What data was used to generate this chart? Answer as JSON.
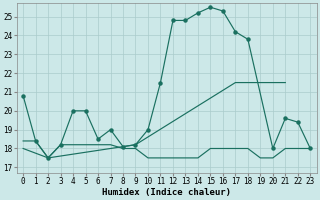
{
  "xlabel": "Humidex (Indice chaleur)",
  "bg_color": "#cce8e8",
  "grid_color": "#aacccc",
  "line_color": "#1a7060",
  "xlim": [
    -0.5,
    23.5
  ],
  "ylim": [
    16.7,
    25.7
  ],
  "yticks": [
    17,
    18,
    19,
    20,
    21,
    22,
    23,
    24,
    25
  ],
  "xticks": [
    0,
    1,
    2,
    3,
    4,
    5,
    6,
    7,
    8,
    9,
    10,
    11,
    12,
    13,
    14,
    15,
    16,
    17,
    18,
    19,
    20,
    21,
    22,
    23
  ],
  "line1_x": [
    0,
    1,
    2,
    3,
    4,
    5,
    6,
    7,
    8,
    9,
    10,
    11,
    12,
    13,
    14,
    15,
    16,
    17,
    18,
    20,
    21,
    22,
    23
  ],
  "line1_y": [
    20.8,
    18.4,
    17.5,
    18.2,
    20.0,
    20.0,
    18.5,
    19.0,
    18.1,
    18.2,
    19.0,
    21.5,
    24.8,
    24.8,
    25.2,
    25.5,
    25.3,
    24.2,
    23.8,
    18.0,
    19.6,
    19.4,
    18.0
  ],
  "line2_x": [
    0,
    1,
    2,
    3,
    4,
    5,
    6,
    7,
    8,
    9,
    10,
    11,
    12,
    13,
    14,
    15,
    16,
    17,
    18,
    19,
    20,
    21,
    22,
    23
  ],
  "line2_y": [
    18.4,
    18.4,
    17.5,
    18.2,
    18.2,
    18.2,
    18.2,
    18.2,
    18.0,
    18.0,
    17.5,
    17.5,
    17.5,
    17.5,
    17.5,
    18.0,
    18.0,
    18.0,
    18.0,
    17.5,
    17.5,
    18.0,
    18.0,
    18.0
  ],
  "line3_x": [
    0,
    2,
    9,
    17,
    21
  ],
  "line3_y": [
    18.0,
    17.5,
    18.2,
    21.5,
    21.5
  ]
}
